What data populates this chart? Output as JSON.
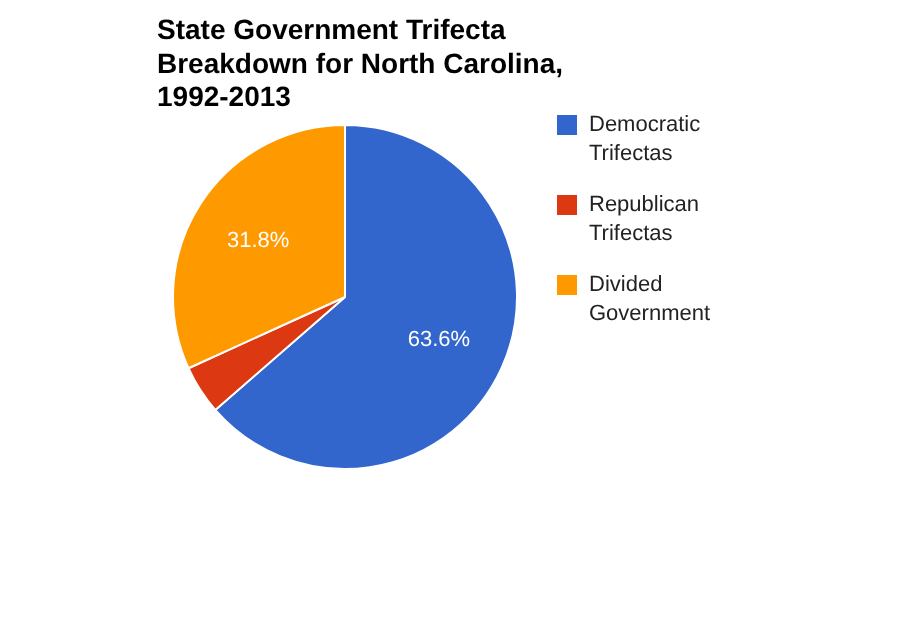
{
  "chart_data": {
    "type": "pie",
    "title": "State Government Trifecta Breakdown for North Carolina, 1992-2013",
    "categories": [
      "Democratic Trifectas",
      "Republican Trifectas",
      "Divided Government"
    ],
    "values": [
      63.6,
      4.6,
      31.8
    ],
    "colors": [
      "#3366cc",
      "#dc3912",
      "#ff9900"
    ],
    "value_labels": [
      "63.6%",
      null,
      "31.8%"
    ],
    "legend": "right"
  }
}
